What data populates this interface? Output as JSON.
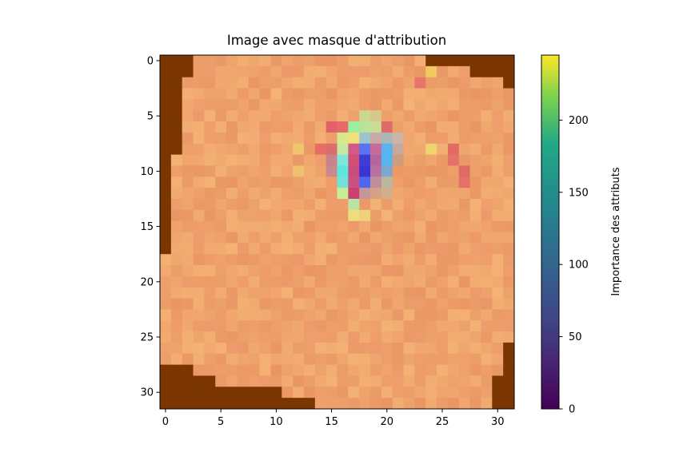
{
  "chart_data": {
    "type": "heatmap",
    "title": "Image avec masque d'attribution",
    "x_ticks": [
      0,
      5,
      10,
      15,
      20,
      25,
      30
    ],
    "y_ticks": [
      0,
      5,
      10,
      15,
      20,
      25,
      30
    ],
    "image_size": [
      32,
      32
    ],
    "colorbar": {
      "label": "Importance des attributs",
      "colormap": "viridis",
      "range": [
        0,
        245
      ],
      "ticks": [
        0,
        50,
        100,
        150,
        200
      ]
    },
    "base_colors": {
      "background": "#7a3500",
      "skin": "#f0a76e"
    },
    "hotspots": [
      {
        "col": 17,
        "row": 6,
        "color": "#9bf0a0"
      },
      {
        "col": 18,
        "row": 6,
        "color": "#b7e39a"
      },
      {
        "col": 19,
        "row": 6,
        "color": "#c8dc92"
      },
      {
        "col": 18,
        "row": 5,
        "color": "#c9d88d"
      },
      {
        "col": 19,
        "row": 5,
        "color": "#d7c98c"
      },
      {
        "col": 16,
        "row": 7,
        "color": "#d8e88c"
      },
      {
        "col": 17,
        "row": 7,
        "color": "#f1e07c"
      },
      {
        "col": 18,
        "row": 7,
        "color": "#9bc7cc"
      },
      {
        "col": 19,
        "row": 7,
        "color": "#c8a9a8"
      },
      {
        "col": 20,
        "row": 7,
        "color": "#aab7b5"
      },
      {
        "col": 21,
        "row": 7,
        "color": "#c9b6a6"
      },
      {
        "col": 16,
        "row": 8,
        "color": "#c9e7a2"
      },
      {
        "col": 17,
        "row": 8,
        "color": "#d25a86"
      },
      {
        "col": 18,
        "row": 8,
        "color": "#5b73f1"
      },
      {
        "col": 19,
        "row": 8,
        "color": "#c76b9a"
      },
      {
        "col": 20,
        "row": 8,
        "color": "#58b4ef"
      },
      {
        "col": 21,
        "row": 8,
        "color": "#c6a89d"
      },
      {
        "col": 16,
        "row": 9,
        "color": "#7ce9dc"
      },
      {
        "col": 17,
        "row": 9,
        "color": "#d24f77"
      },
      {
        "col": 18,
        "row": 9,
        "color": "#3f3cd8"
      },
      {
        "col": 19,
        "row": 9,
        "color": "#b3669e"
      },
      {
        "col": 20,
        "row": 9,
        "color": "#53b6ef"
      },
      {
        "col": 21,
        "row": 9,
        "color": "#ce9d7d"
      },
      {
        "col": 16,
        "row": 10,
        "color": "#5fe6dc"
      },
      {
        "col": 17,
        "row": 10,
        "color": "#ca4c7b"
      },
      {
        "col": 18,
        "row": 10,
        "color": "#3b36d3"
      },
      {
        "col": 19,
        "row": 10,
        "color": "#b971a4"
      },
      {
        "col": 20,
        "row": 10,
        "color": "#7da8cd"
      },
      {
        "col": 16,
        "row": 11,
        "color": "#70e3d6"
      },
      {
        "col": 17,
        "row": 11,
        "color": "#c85383"
      },
      {
        "col": 18,
        "row": 11,
        "color": "#4d67ef"
      },
      {
        "col": 19,
        "row": 11,
        "color": "#c18d9a"
      },
      {
        "col": 20,
        "row": 11,
        "color": "#b9b89f"
      },
      {
        "col": 16,
        "row": 12,
        "color": "#c7ee96"
      },
      {
        "col": 17,
        "row": 12,
        "color": "#cc3f70"
      },
      {
        "col": 18,
        "row": 12,
        "color": "#c2989a"
      },
      {
        "col": 19,
        "row": 12,
        "color": "#d5a182"
      },
      {
        "col": 20,
        "row": 12,
        "color": "#cfb08b"
      },
      {
        "col": 17,
        "row": 13,
        "color": "#b8e4a4"
      },
      {
        "col": 17,
        "row": 14,
        "color": "#f0de7e"
      },
      {
        "col": 18,
        "row": 14,
        "color": "#ecd37b"
      },
      {
        "col": 15,
        "row": 6,
        "color": "#e2606a"
      },
      {
        "col": 16,
        "row": 6,
        "color": "#e66a6a"
      },
      {
        "col": 20,
        "row": 6,
        "color": "#de6a6a"
      },
      {
        "col": 15,
        "row": 8,
        "color": "#d96e6d"
      },
      {
        "col": 15,
        "row": 9,
        "color": "#c9838b"
      },
      {
        "col": 15,
        "row": 10,
        "color": "#c88a8f"
      },
      {
        "col": 14,
        "row": 8,
        "color": "#e66e63"
      },
      {
        "col": 24,
        "row": 1,
        "color": "#f3c860"
      },
      {
        "col": 23,
        "row": 2,
        "color": "#e9756a"
      },
      {
        "col": 26,
        "row": 8,
        "color": "#e56a66"
      },
      {
        "col": 26,
        "row": 9,
        "color": "#e6716a"
      },
      {
        "col": 27,
        "row": 10,
        "color": "#e06a66"
      },
      {
        "col": 27,
        "row": 11,
        "color": "#e47068"
      },
      {
        "col": 24,
        "row": 8,
        "color": "#eed46e"
      },
      {
        "col": 12,
        "row": 8,
        "color": "#f0c46a"
      },
      {
        "col": 12,
        "row": 10,
        "color": "#f0c070"
      }
    ]
  }
}
